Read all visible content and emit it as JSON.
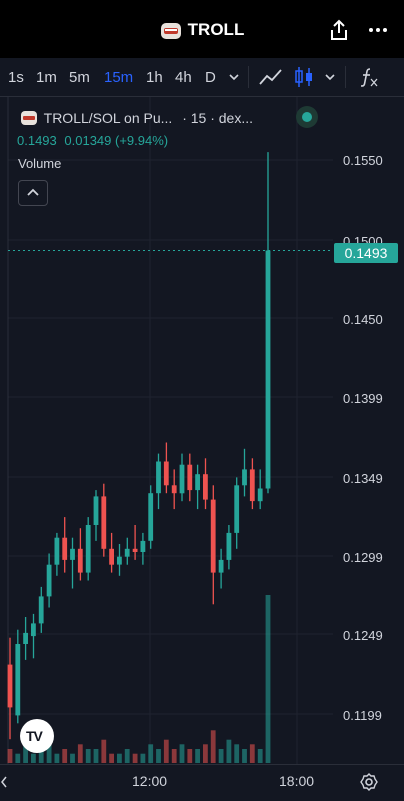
{
  "header": {
    "title": "TROLL",
    "share_icon": "share-icon",
    "more_icon": "more-horizontal-icon"
  },
  "toolbar": {
    "timeframes": [
      "1s",
      "1m",
      "5m",
      "15m",
      "1h",
      "4h",
      "D"
    ],
    "active_timeframe": "15m",
    "icons": [
      "chevron-down-icon",
      "line-chart-icon",
      "candlestick-icon",
      "chevron-down-icon",
      "indicators-fx-icon"
    ]
  },
  "legend": {
    "symbol": "TROLL/SOL on Pu...",
    "interval": "· 15 · dex...",
    "price": "0.1493",
    "change": "0.01349 (+9.94%)",
    "volume_label": "Volume"
  },
  "colors": {
    "up": "#26a69a",
    "down": "#ef5350",
    "bg": "#131722"
  },
  "price_axis": {
    "labels": [
      "0.1550",
      "0.1500",
      "0.1450",
      "0.1399",
      "0.1349",
      "0.1299",
      "0.1249",
      "0.1199"
    ],
    "current": "0.1493"
  },
  "time_axis": {
    "labels": [
      "12:00",
      "18:00"
    ]
  },
  "chart_data": {
    "type": "candlestick",
    "series_name": "TROLL/SOL",
    "candles": [
      {
        "o": 0.1232,
        "h": 0.1249,
        "l": 0.1185,
        "c": 0.1205
      },
      {
        "o": 0.12,
        "h": 0.1254,
        "l": 0.1195,
        "c": 0.1245
      },
      {
        "o": 0.1245,
        "h": 0.1262,
        "l": 0.1235,
        "c": 0.1252
      },
      {
        "o": 0.125,
        "h": 0.1264,
        "l": 0.1236,
        "c": 0.1258
      },
      {
        "o": 0.1258,
        "h": 0.1281,
        "l": 0.1252,
        "c": 0.1275
      },
      {
        "o": 0.1275,
        "h": 0.1302,
        "l": 0.1268,
        "c": 0.1295
      },
      {
        "o": 0.1295,
        "h": 0.1315,
        "l": 0.1288,
        "c": 0.1312
      },
      {
        "o": 0.1312,
        "h": 0.1325,
        "l": 0.129,
        "c": 0.1298
      },
      {
        "o": 0.1298,
        "h": 0.1312,
        "l": 0.128,
        "c": 0.1305
      },
      {
        "o": 0.1305,
        "h": 0.1318,
        "l": 0.1285,
        "c": 0.129
      },
      {
        "o": 0.129,
        "h": 0.1325,
        "l": 0.1285,
        "c": 0.132
      },
      {
        "o": 0.132,
        "h": 0.1342,
        "l": 0.131,
        "c": 0.1338
      },
      {
        "o": 0.1338,
        "h": 0.1346,
        "l": 0.13,
        "c": 0.1305
      },
      {
        "o": 0.1305,
        "h": 0.1315,
        "l": 0.129,
        "c": 0.1295
      },
      {
        "o": 0.1295,
        "h": 0.1308,
        "l": 0.1288,
        "c": 0.13
      },
      {
        "o": 0.13,
        "h": 0.1312,
        "l": 0.1295,
        "c": 0.1305
      },
      {
        "o": 0.1305,
        "h": 0.132,
        "l": 0.1298,
        "c": 0.1303
      },
      {
        "o": 0.1303,
        "h": 0.1315,
        "l": 0.1295,
        "c": 0.131
      },
      {
        "o": 0.131,
        "h": 0.1345,
        "l": 0.1305,
        "c": 0.134
      },
      {
        "o": 0.134,
        "h": 0.1365,
        "l": 0.133,
        "c": 0.136
      },
      {
        "o": 0.136,
        "h": 0.1372,
        "l": 0.134,
        "c": 0.1345
      },
      {
        "o": 0.1345,
        "h": 0.1355,
        "l": 0.133,
        "c": 0.134
      },
      {
        "o": 0.134,
        "h": 0.1365,
        "l": 0.1335,
        "c": 0.1358
      },
      {
        "o": 0.1358,
        "h": 0.1365,
        "l": 0.1335,
        "c": 0.1342
      },
      {
        "o": 0.1342,
        "h": 0.1358,
        "l": 0.133,
        "c": 0.1352
      },
      {
        "o": 0.1352,
        "h": 0.1362,
        "l": 0.133,
        "c": 0.1336
      },
      {
        "o": 0.1336,
        "h": 0.1345,
        "l": 0.127,
        "c": 0.129
      },
      {
        "o": 0.129,
        "h": 0.1305,
        "l": 0.128,
        "c": 0.1298
      },
      {
        "o": 0.1298,
        "h": 0.132,
        "l": 0.1292,
        "c": 0.1315
      },
      {
        "o": 0.1315,
        "h": 0.135,
        "l": 0.1305,
        "c": 0.1345
      },
      {
        "o": 0.1345,
        "h": 0.1368,
        "l": 0.1338,
        "c": 0.1355
      },
      {
        "o": 0.1355,
        "h": 0.1362,
        "l": 0.133,
        "c": 0.1335
      },
      {
        "o": 0.1335,
        "h": 0.1355,
        "l": 0.133,
        "c": 0.1343
      },
      {
        "o": 0.1343,
        "h": 0.1555,
        "l": 0.134,
        "c": 0.1493
      }
    ],
    "volumes": [
      3,
      2,
      4,
      2,
      3,
      5,
      2,
      3,
      2,
      4,
      3,
      3,
      5,
      2,
      2,
      3,
      2,
      2,
      4,
      3,
      5,
      3,
      4,
      3,
      3,
      4,
      7,
      3,
      5,
      4,
      3,
      4,
      3,
      36
    ],
    "ylim": [
      0.118,
      0.156
    ]
  }
}
